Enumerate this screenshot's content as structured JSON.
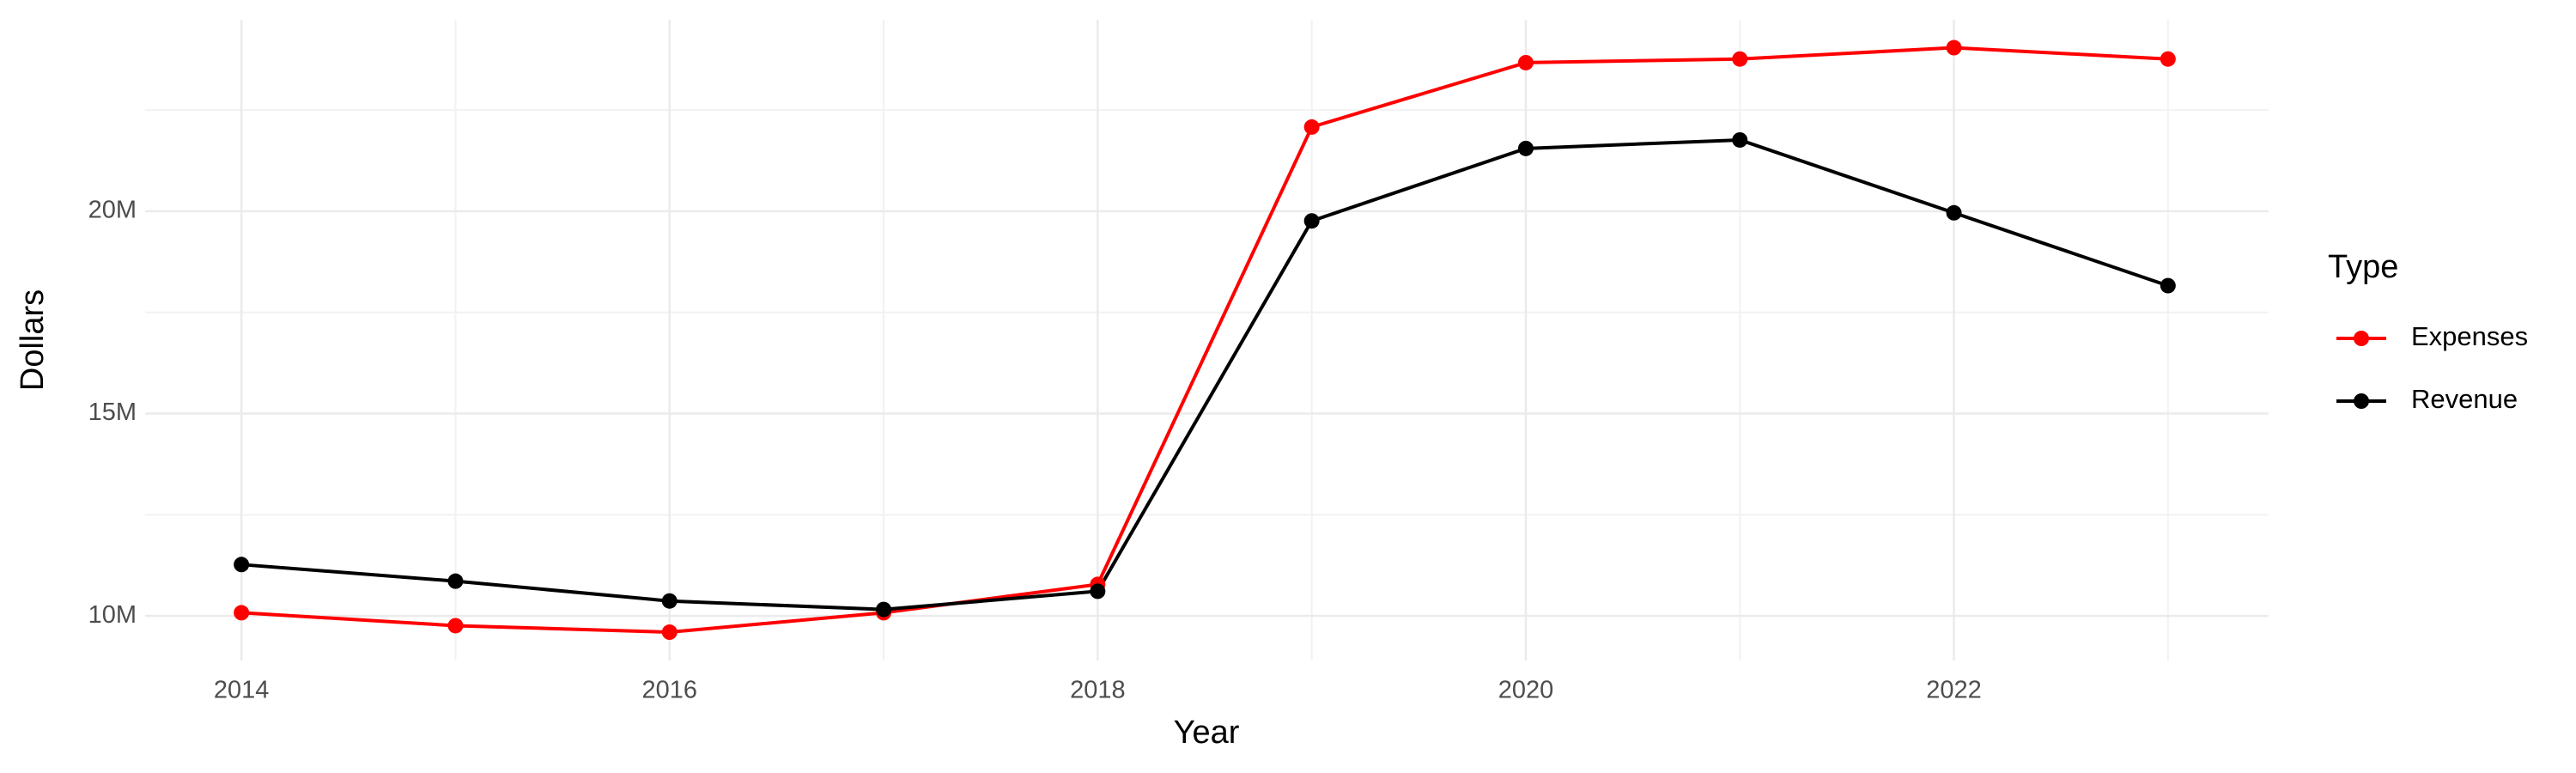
{
  "chart_data": {
    "type": "line",
    "x_label": "Year",
    "y_label": "Dollars",
    "legend_title": "Type",
    "legend": "right",
    "grid": true,
    "x": [
      2014,
      2015,
      2016,
      2017,
      2018,
      2019,
      2020,
      2021,
      2022,
      2023
    ],
    "series": [
      {
        "name": "Expenses",
        "color": "#ff0000",
        "values": [
          10080000,
          9760000,
          9600000,
          10080000,
          10780000,
          22080000,
          23670000,
          23760000,
          24040000,
          23760000
        ]
      },
      {
        "name": "Revenue",
        "color": "#000000",
        "values": [
          11270000,
          10860000,
          10370000,
          10160000,
          10610000,
          19760000,
          21550000,
          21760000,
          19960000,
          18160000
        ]
      }
    ],
    "xlim": [
      2013.55,
      2023.47
    ],
    "xticks": [
      2014,
      2016,
      2018,
      2020,
      2022
    ],
    "ylim": [
      8900000,
      24730000
    ],
    "yticks": [
      {
        "value": 10000000,
        "label": "10M"
      },
      {
        "value": 15000000,
        "label": "15M"
      },
      {
        "value": 20000000,
        "label": "20M"
      }
    ]
  }
}
